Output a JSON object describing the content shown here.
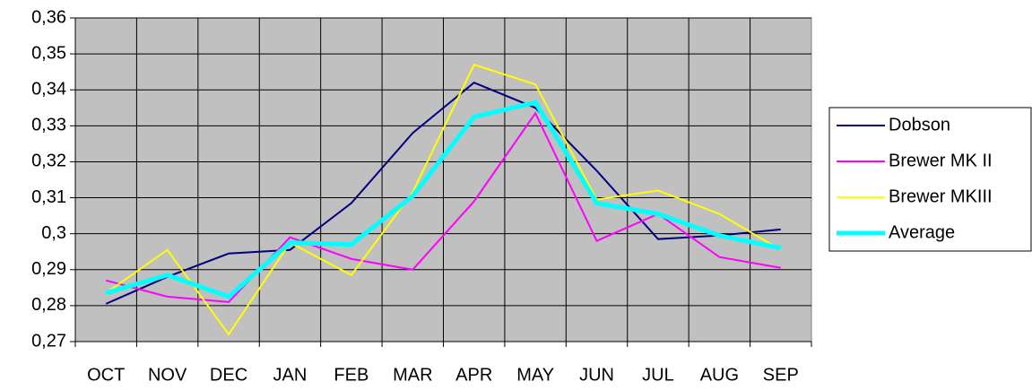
{
  "chart_data": {
    "type": "line",
    "categories": [
      "OCT",
      "NOV",
      "DEC",
      "JAN",
      "FEB",
      "MAR",
      "APR",
      "MAY",
      "JUN",
      "JUL",
      "AUG",
      "SEP"
    ],
    "series": [
      {
        "name": "Dobson",
        "color": "#000080",
        "width": 2,
        "values": [
          0.2805,
          0.288,
          0.2945,
          0.2955,
          0.3085,
          0.328,
          0.342,
          0.335,
          0.3175,
          0.2985,
          0.2995,
          0.3012
        ]
      },
      {
        "name": "Brewer MK II",
        "color": "#ff00ff",
        "width": 2,
        "values": [
          0.287,
          0.2825,
          0.281,
          0.299,
          0.293,
          0.29,
          0.309,
          0.3335,
          0.298,
          0.3055,
          0.2935,
          0.2905
        ]
      },
      {
        "name": "Brewer MKIII",
        "color": "#ffff00",
        "width": 2,
        "values": [
          0.2835,
          0.2955,
          0.272,
          0.2975,
          0.2885,
          0.3115,
          0.347,
          0.3415,
          0.3095,
          0.312,
          0.3055,
          0.2955
        ]
      },
      {
        "name": "Average",
        "color": "#00ffff",
        "width": 5,
        "values": [
          0.2835,
          0.2885,
          0.2825,
          0.2975,
          0.297,
          0.3105,
          0.3325,
          0.3365,
          0.3085,
          0.3055,
          0.2995,
          0.296
        ]
      }
    ],
    "ylim": [
      0.27,
      0.36
    ],
    "yticks": [
      {
        "value": 0.27,
        "label": "0,27"
      },
      {
        "value": 0.28,
        "label": "0,28"
      },
      {
        "value": 0.29,
        "label": "0,29"
      },
      {
        "value": 0.3,
        "label": "0,3"
      },
      {
        "value": 0.31,
        "label": "0,31"
      },
      {
        "value": 0.32,
        "label": "0,32"
      },
      {
        "value": 0.33,
        "label": "0,33"
      },
      {
        "value": 0.34,
        "label": "0,34"
      },
      {
        "value": 0.35,
        "label": "0,35"
      },
      {
        "value": 0.36,
        "label": "0,36"
      }
    ],
    "grid": true,
    "legend": "right",
    "background": "#c0c0c0"
  }
}
